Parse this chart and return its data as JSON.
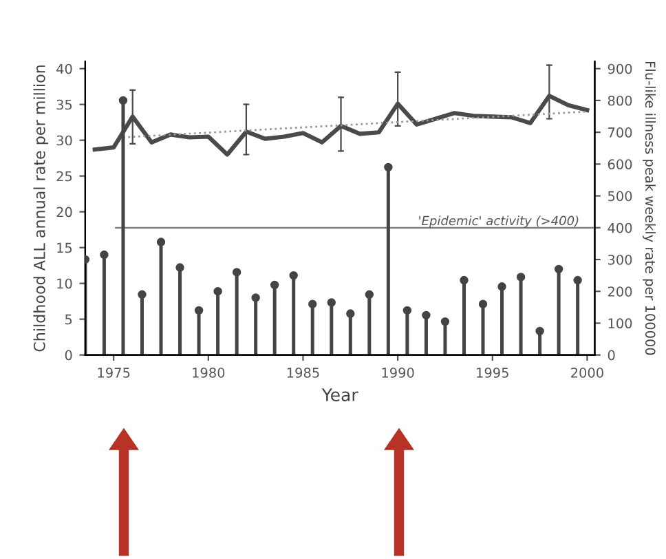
{
  "chart_data": {
    "type": "line",
    "xlabel": "Year",
    "ylabel": "Childhood ALL annual rate per million",
    "y2label": "Flu-like illness peak weekly rate per 100000",
    "xlim": [
      1973.5,
      2000.4
    ],
    "xticks": [
      1975,
      1980,
      1985,
      1990,
      1995,
      2000
    ],
    "ylim": [
      0,
      41
    ],
    "yticks": [
      0,
      5,
      10,
      15,
      20,
      25,
      30,
      35,
      40
    ],
    "y2lim": [
      0,
      922.5
    ],
    "y2ticks": [
      0,
      100,
      200,
      300,
      400,
      500,
      600,
      700,
      800,
      900
    ],
    "grid": false,
    "legend": false,
    "series": [
      {
        "type": "lollipop",
        "axis": "y2",
        "color": "#444444",
        "marker": "circle",
        "x": [
          1973.5,
          1974.5,
          1975.5,
          1976.5,
          1977.5,
          1978.5,
          1979.5,
          1980.5,
          1981.5,
          1982.5,
          1983.5,
          1984.5,
          1985.5,
          1986.5,
          1987.5,
          1988.5,
          1989.5,
          1990.5,
          1991.5,
          1992.5,
          1993.5,
          1994.5,
          1995.5,
          1996.5,
          1997.5,
          1998.5,
          1999.5
        ],
        "values": [
          300,
          315,
          800,
          190,
          355,
          275,
          140,
          200,
          260,
          180,
          220,
          250,
          160,
          165,
          130,
          190,
          590,
          140,
          125,
          105,
          235,
          160,
          215,
          245,
          75,
          270,
          235
        ]
      },
      {
        "color": "#4a4a4a",
        "marker": "none",
        "line_style": "solid",
        "x": [
          1974,
          1975,
          1976,
          1977,
          1978,
          1979,
          1980,
          1981,
          1982,
          1983,
          1984,
          1985,
          1986,
          1987,
          1988,
          1989,
          1990,
          1991,
          1992,
          1993,
          1994,
          1995,
          1996,
          1997,
          1998,
          1999,
          2000
        ],
        "values": [
          28.7,
          29,
          33.3,
          29.7,
          30.8,
          30.4,
          30.5,
          28,
          31.2,
          30.2,
          30.5,
          31,
          29.7,
          32,
          30.9,
          31.1,
          35.1,
          32.2,
          33.0,
          33.8,
          33.4,
          33.3,
          33.2,
          32.4,
          36.2,
          34.9,
          34.2
        ],
        "errors": [
          null,
          null,
          [
            29.5,
            37
          ],
          null,
          null,
          null,
          null,
          null,
          [
            28,
            35
          ],
          null,
          null,
          null,
          null,
          [
            28.5,
            36
          ],
          null,
          null,
          [
            32,
            39.5
          ],
          null,
          null,
          null,
          null,
          null,
          null,
          null,
          [
            33,
            40.5
          ],
          null,
          null
        ]
      },
      {
        "type": "line",
        "color": "#999999",
        "marker": "none",
        "line_style": "dotted",
        "x": [
          1975.5,
          2000
        ],
        "values": [
          30.4,
          34.0
        ]
      }
    ],
    "ref_lines": [
      {
        "axis": "y2",
        "value": 400,
        "label": "'Epidemic' activity (>400)",
        "color": "#777777",
        "line_style": "solid"
      }
    ]
  }
}
